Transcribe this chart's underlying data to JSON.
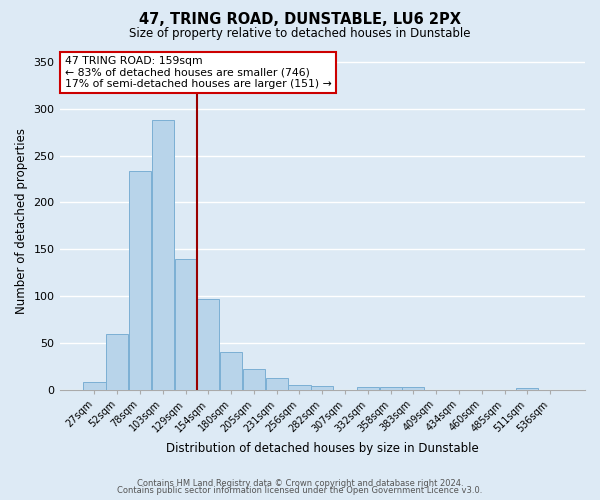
{
  "title": "47, TRING ROAD, DUNSTABLE, LU6 2PX",
  "subtitle": "Size of property relative to detached houses in Dunstable",
  "xlabel": "Distribution of detached houses by size in Dunstable",
  "ylabel": "Number of detached properties",
  "bar_labels": [
    "27sqm",
    "52sqm",
    "78sqm",
    "103sqm",
    "129sqm",
    "154sqm",
    "180sqm",
    "205sqm",
    "231sqm",
    "256sqm",
    "282sqm",
    "307sqm",
    "332sqm",
    "358sqm",
    "383sqm",
    "409sqm",
    "434sqm",
    "460sqm",
    "485sqm",
    "511sqm",
    "536sqm"
  ],
  "bar_values": [
    8,
    59,
    234,
    288,
    140,
    97,
    40,
    22,
    13,
    5,
    4,
    0,
    3,
    3,
    3,
    0,
    0,
    0,
    0,
    2,
    0
  ],
  "bar_color": "#b8d4ea",
  "bar_edge_color": "#7bafd4",
  "bg_color": "#ddeaf5",
  "grid_color": "#ffffff",
  "vline_color": "#990000",
  "vline_x_index": 5,
  "annotation_lines": [
    "47 TRING ROAD: 159sqm",
    "← 83% of detached houses are smaller (746)",
    "17% of semi-detached houses are larger (151) →"
  ],
  "annotation_box_color": "#ffffff",
  "annotation_box_edge": "#cc0000",
  "ylim": [
    0,
    360
  ],
  "yticks": [
    0,
    50,
    100,
    150,
    200,
    250,
    300,
    350
  ],
  "footer1": "Contains HM Land Registry data © Crown copyright and database right 2024.",
  "footer2": "Contains public sector information licensed under the Open Government Licence v3.0."
}
